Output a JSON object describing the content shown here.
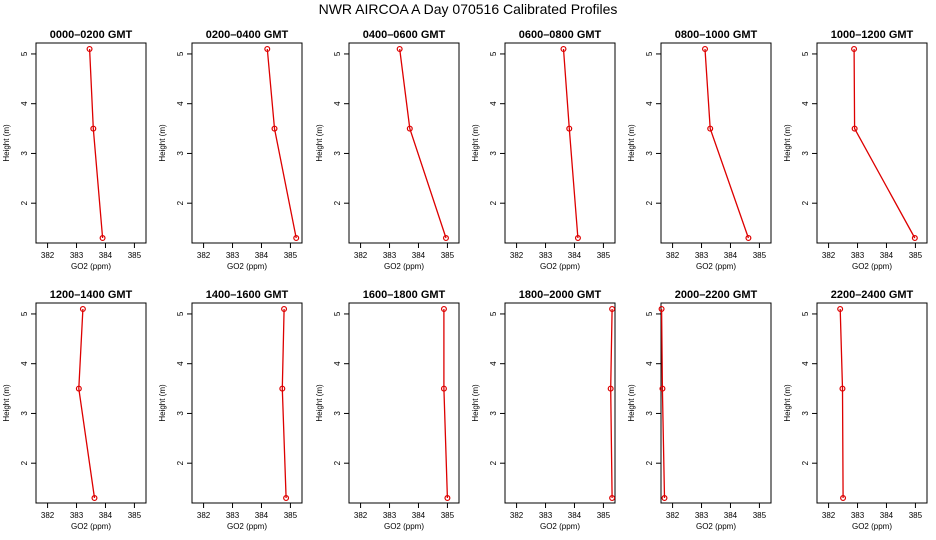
{
  "title": "NWR AIRCOA A  Day 070516  Calibrated Profiles",
  "colors": {
    "series": "#dd0000",
    "axis": "#000000"
  },
  "chart_data": [
    {
      "type": "line",
      "title": "0000–0200 GMT",
      "xlabel": "GO2 (ppm)",
      "ylabel": "Height (m)",
      "xlim": [
        381.6,
        385.4
      ],
      "ylim": [
        1.2,
        5.22
      ],
      "xticks": [
        382,
        383,
        384,
        385
      ],
      "yticks": [
        2,
        3,
        4,
        5
      ],
      "series": [
        {
          "x": [
            383.45,
            383.58,
            383.9
          ],
          "y": [
            5.1,
            3.5,
            1.3
          ]
        }
      ]
    },
    {
      "type": "line",
      "title": "0200–0400 GMT",
      "xlabel": "GO2 (ppm)",
      "ylabel": "Height (m)",
      "xlim": [
        381.6,
        385.4
      ],
      "ylim": [
        1.2,
        5.22
      ],
      "xticks": [
        382,
        383,
        384,
        385
      ],
      "yticks": [
        2,
        3,
        4,
        5
      ],
      "series": [
        {
          "x": [
            384.2,
            384.45,
            385.2
          ],
          "y": [
            5.1,
            3.5,
            1.3
          ]
        }
      ]
    },
    {
      "type": "line",
      "title": "0400–0600 GMT",
      "xlabel": "GO2 (ppm)",
      "ylabel": "Height (m)",
      "xlim": [
        381.6,
        385.4
      ],
      "ylim": [
        1.2,
        5.22
      ],
      "xticks": [
        382,
        383,
        384,
        385
      ],
      "yticks": [
        2,
        3,
        4,
        5
      ],
      "series": [
        {
          "x": [
            383.35,
            383.7,
            384.95
          ],
          "y": [
            5.1,
            3.5,
            1.3
          ]
        }
      ]
    },
    {
      "type": "line",
      "title": "0600–0800 GMT",
      "xlabel": "GO2 (ppm)",
      "ylabel": "Height (m)",
      "xlim": [
        381.6,
        385.4
      ],
      "ylim": [
        1.2,
        5.22
      ],
      "xticks": [
        382,
        383,
        384,
        385
      ],
      "yticks": [
        2,
        3,
        4,
        5
      ],
      "series": [
        {
          "x": [
            383.62,
            383.82,
            384.12
          ],
          "y": [
            5.1,
            3.5,
            1.3
          ]
        }
      ]
    },
    {
      "type": "line",
      "title": "0800–1000 GMT",
      "xlabel": "GO2 (ppm)",
      "ylabel": "Height (m)",
      "xlim": [
        381.6,
        385.4
      ],
      "ylim": [
        1.2,
        5.22
      ],
      "xticks": [
        382,
        383,
        384,
        385
      ],
      "yticks": [
        2,
        3,
        4,
        5
      ],
      "series": [
        {
          "x": [
            383.12,
            383.3,
            384.62
          ],
          "y": [
            5.1,
            3.5,
            1.3
          ]
        }
      ]
    },
    {
      "type": "line",
      "title": "1000–1200 GMT",
      "xlabel": "GO2 (ppm)",
      "ylabel": "Height (m)",
      "xlim": [
        381.6,
        385.4
      ],
      "ylim": [
        1.2,
        5.22
      ],
      "xticks": [
        382,
        383,
        384,
        385
      ],
      "yticks": [
        2,
        3,
        4,
        5
      ],
      "series": [
        {
          "x": [
            382.88,
            382.9,
            384.98
          ],
          "y": [
            5.1,
            3.5,
            1.3
          ]
        }
      ]
    },
    {
      "type": "line",
      "title": "1200–1400 GMT",
      "xlabel": "GO2 (ppm)",
      "ylabel": "Height (m)",
      "xlim": [
        381.6,
        385.4
      ],
      "ylim": [
        1.2,
        5.22
      ],
      "xticks": [
        382,
        383,
        384,
        385
      ],
      "yticks": [
        2,
        3,
        4,
        5
      ],
      "series": [
        {
          "x": [
            383.22,
            383.08,
            383.62
          ],
          "y": [
            5.1,
            3.5,
            1.3
          ]
        }
      ]
    },
    {
      "type": "line",
      "title": "1400–1600 GMT",
      "xlabel": "GO2 (ppm)",
      "ylabel": "Height (m)",
      "xlim": [
        381.6,
        385.4
      ],
      "ylim": [
        1.2,
        5.22
      ],
      "xticks": [
        382,
        383,
        384,
        385
      ],
      "yticks": [
        2,
        3,
        4,
        5
      ],
      "series": [
        {
          "x": [
            384.78,
            384.72,
            384.85
          ],
          "y": [
            5.1,
            3.5,
            1.3
          ]
        }
      ]
    },
    {
      "type": "line",
      "title": "1600–1800 GMT",
      "xlabel": "GO2 (ppm)",
      "ylabel": "Height (m)",
      "xlim": [
        381.6,
        385.4
      ],
      "ylim": [
        1.2,
        5.22
      ],
      "xticks": [
        382,
        383,
        384,
        385
      ],
      "yticks": [
        2,
        3,
        4,
        5
      ],
      "series": [
        {
          "x": [
            384.88,
            384.88,
            385.0
          ],
          "y": [
            5.1,
            3.5,
            1.3
          ]
        }
      ]
    },
    {
      "type": "line",
      "title": "1800–2000 GMT",
      "xlabel": "GO2 (ppm)",
      "ylabel": "Height (m)",
      "xlim": [
        381.6,
        385.4
      ],
      "ylim": [
        1.2,
        5.22
      ],
      "xticks": [
        382,
        383,
        384,
        385
      ],
      "yticks": [
        2,
        3,
        4,
        5
      ],
      "series": [
        {
          "x": [
            385.3,
            385.25,
            385.3
          ],
          "y": [
            5.1,
            3.5,
            1.3
          ]
        }
      ]
    },
    {
      "type": "line",
      "title": "2000–2200 GMT",
      "xlabel": "GO2 (ppm)",
      "ylabel": "Height (m)",
      "xlim": [
        381.6,
        385.4
      ],
      "ylim": [
        1.2,
        5.22
      ],
      "xticks": [
        382,
        383,
        384,
        385
      ],
      "yticks": [
        2,
        3,
        4,
        5
      ],
      "series": [
        {
          "x": [
            381.62,
            381.65,
            381.72
          ],
          "y": [
            5.1,
            3.5,
            1.3
          ]
        }
      ]
    },
    {
      "type": "line",
      "title": "2200–2400 GMT",
      "xlabel": "GO2 (ppm)",
      "ylabel": "Height (m)",
      "xlim": [
        381.6,
        385.4
      ],
      "ylim": [
        1.2,
        5.22
      ],
      "xticks": [
        382,
        383,
        384,
        385
      ],
      "yticks": [
        2,
        3,
        4,
        5
      ],
      "series": [
        {
          "x": [
            382.4,
            382.48,
            382.5
          ],
          "y": [
            5.1,
            3.5,
            1.3
          ]
        }
      ]
    }
  ]
}
